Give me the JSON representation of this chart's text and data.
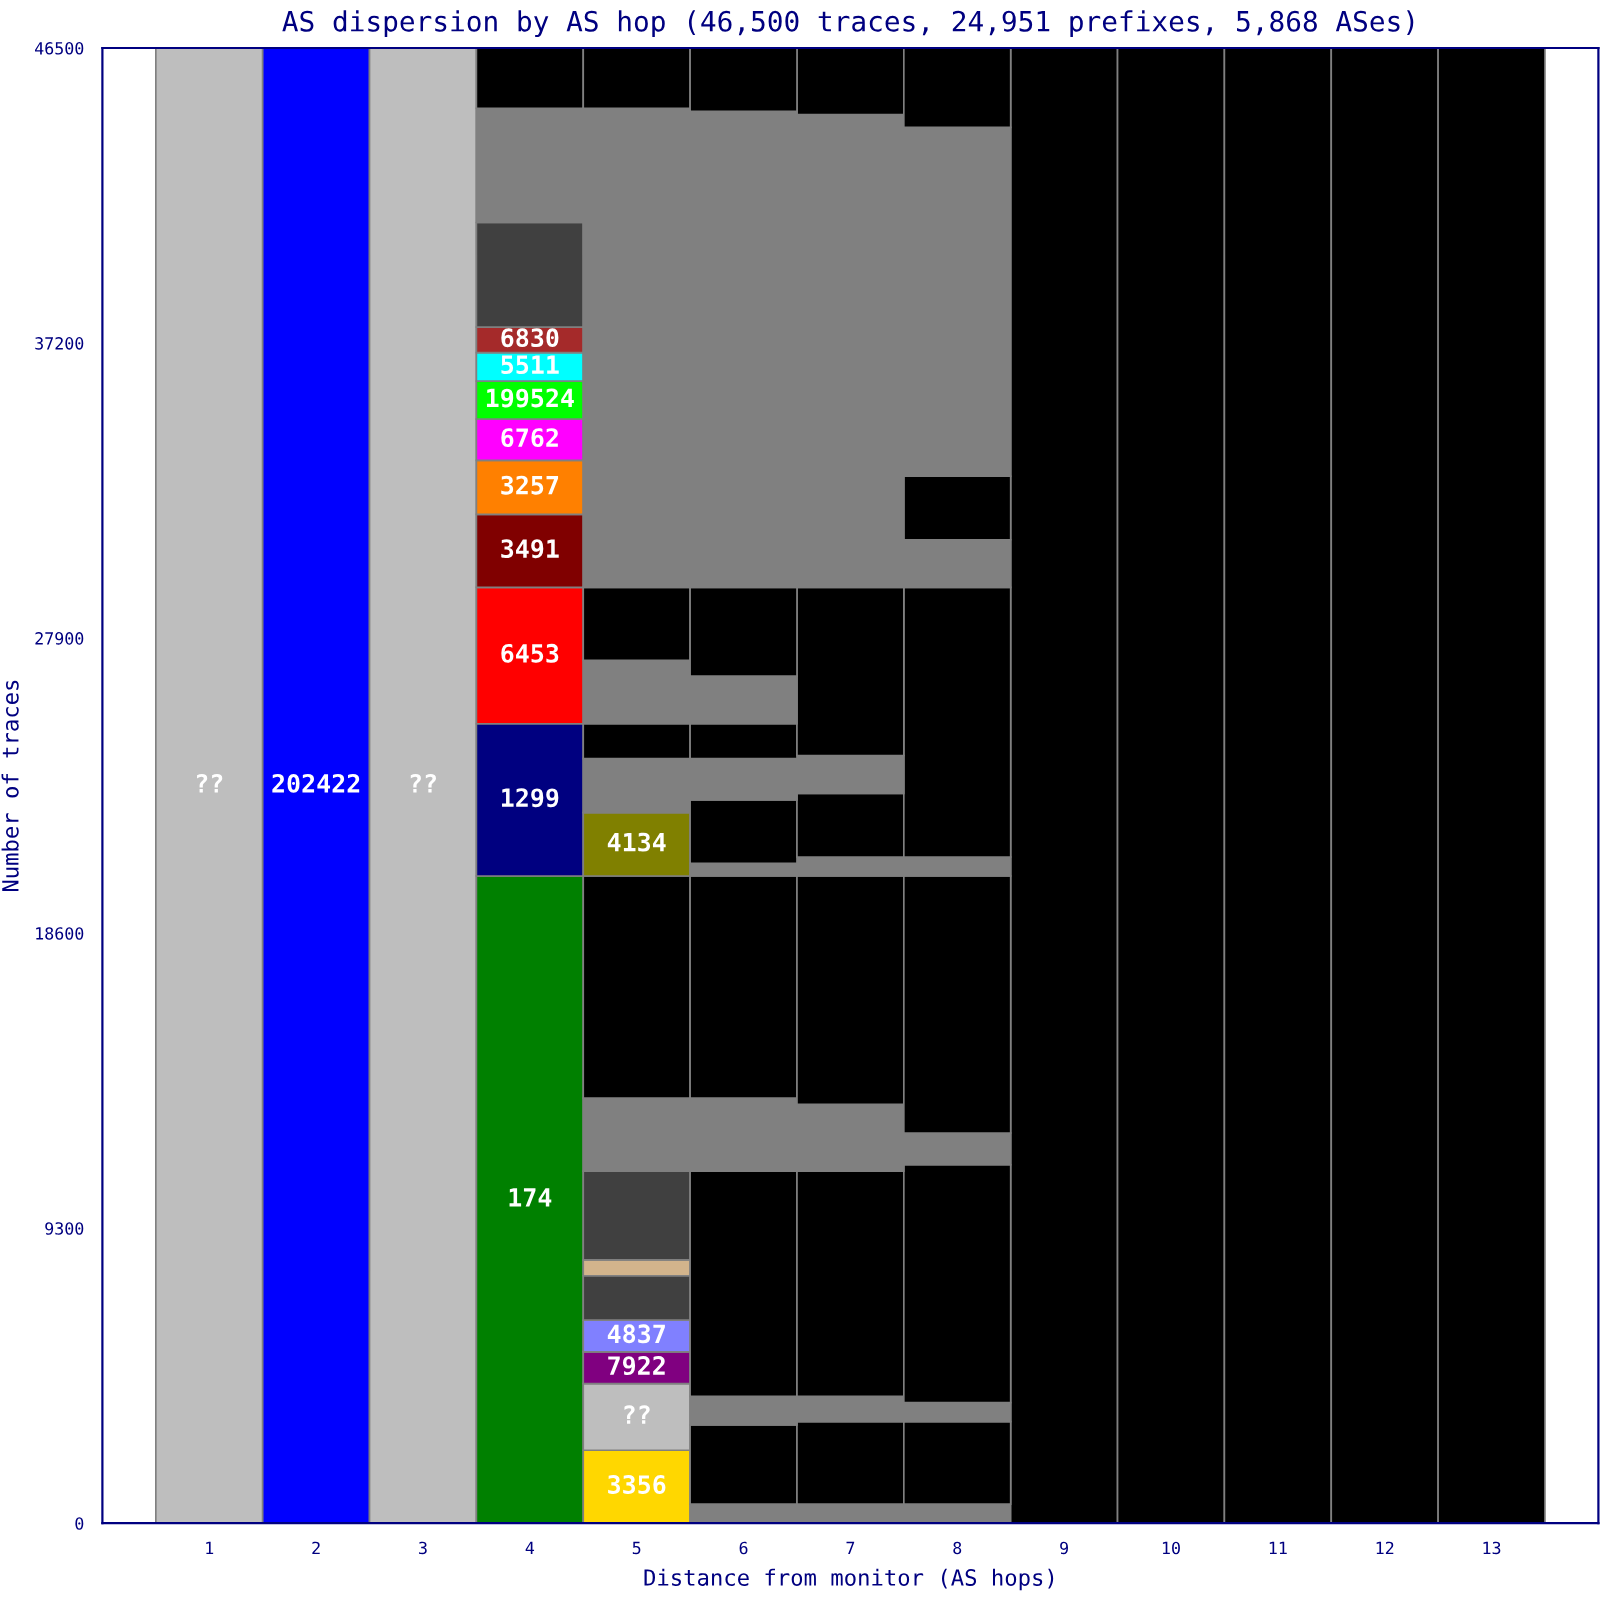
{
  "chart_data": {
    "type": "bar",
    "stacked": true,
    "title": "AS dispersion by AS hop (46,500 traces, 24,951 prefixes, 5,868 ASes)",
    "xlabel": "Distance from monitor (AS hops)",
    "ylabel": "Number of traces",
    "categories": [
      "1",
      "2",
      "3",
      "4",
      "5",
      "6",
      "7",
      "8",
      "9",
      "10",
      "11",
      "12",
      "13"
    ],
    "ylim": [
      0,
      46500
    ],
    "yticks": [
      0,
      9300,
      18600,
      27900,
      37200,
      46500
    ],
    "legend": false,
    "grid": false,
    "series": [
      {
        "name": "??",
        "color": "#bebebe",
        "values": [
          46500,
          null,
          null,
          null,
          null,
          null,
          null,
          null,
          null,
          null,
          null,
          null,
          null
        ]
      },
      {
        "name": "202422",
        "color": "#0000ff",
        "values": [
          null,
          46500,
          null,
          null,
          null,
          null,
          null,
          null,
          null,
          null,
          null,
          null,
          null
        ]
      },
      {
        "name": "??",
        "color": "#bebebe",
        "values": [
          null,
          null,
          46500,
          null,
          null,
          null,
          null,
          null,
          null,
          null,
          null,
          null,
          null
        ]
      },
      {
        "name": "174",
        "color": "#008000",
        "values": [
          null,
          null,
          null,
          20400,
          null,
          null,
          null,
          null,
          null,
          null,
          null,
          null,
          null
        ]
      },
      {
        "name": "1299",
        "color": "#000080",
        "values": [
          null,
          null,
          null,
          4800,
          null,
          null,
          null,
          null,
          null,
          null,
          null,
          null,
          null
        ]
      },
      {
        "name": "6453",
        "color": "#ff0000",
        "values": [
          null,
          null,
          null,
          4300,
          null,
          null,
          null,
          null,
          null,
          null,
          null,
          null,
          null
        ]
      },
      {
        "name": "3491",
        "color": "#800000",
        "values": [
          null,
          null,
          null,
          2300,
          null,
          null,
          null,
          null,
          null,
          null,
          null,
          null,
          null
        ]
      },
      {
        "name": "3257",
        "color": "#ff8000",
        "values": [
          null,
          null,
          null,
          1700,
          null,
          null,
          null,
          null,
          null,
          null,
          null,
          null,
          null
        ]
      },
      {
        "name": "6762",
        "color": "#ff00ff",
        "values": [
          null,
          null,
          null,
          1300,
          null,
          null,
          null,
          null,
          null,
          null,
          null,
          null,
          null
        ]
      },
      {
        "name": "199524",
        "color": "#00ff00",
        "values": [
          null,
          null,
          null,
          1200,
          null,
          null,
          null,
          null,
          null,
          null,
          null,
          null,
          null
        ]
      },
      {
        "name": "5511",
        "color": "#00ffff",
        "values": [
          null,
          null,
          null,
          900,
          null,
          null,
          null,
          null,
          null,
          null,
          null,
          null,
          null
        ]
      },
      {
        "name": "6830",
        "color": "#a52a2a",
        "values": [
          null,
          null,
          null,
          800,
          null,
          null,
          null,
          null,
          null,
          null,
          null,
          null,
          null
        ]
      },
      {
        "color": "#404040",
        "values": [
          null,
          null,
          null,
          3300,
          null,
          null,
          null,
          null,
          null,
          null,
          null,
          null,
          null
        ]
      },
      {
        "color": "#808080",
        "values": [
          null,
          null,
          null,
          3600,
          null,
          null,
          null,
          null,
          null,
          null,
          null,
          null,
          null
        ]
      },
      {
        "color": "#000000",
        "values": [
          null,
          null,
          null,
          1900,
          null,
          null,
          null,
          null,
          null,
          null,
          null,
          null,
          null
        ]
      },
      {
        "name": "3356",
        "color": "#ffd700",
        "values": [
          null,
          null,
          null,
          null,
          2300,
          null,
          null,
          null,
          null,
          null,
          null,
          null,
          null
        ]
      },
      {
        "name": "??",
        "color": "#bebebe",
        "values": [
          null,
          null,
          null,
          null,
          2100,
          null,
          null,
          null,
          null,
          null,
          null,
          null,
          null
        ]
      },
      {
        "name": "7922",
        "color": "#800080",
        "values": [
          null,
          null,
          null,
          null,
          1000,
          null,
          null,
          null,
          null,
          null,
          null,
          null,
          null
        ]
      },
      {
        "name": "4837",
        "color": "#8080ff",
        "values": [
          null,
          null,
          null,
          null,
          1000,
          null,
          null,
          null,
          null,
          null,
          null,
          null,
          null
        ]
      },
      {
        "color": "#404040",
        "values": [
          null,
          null,
          null,
          null,
          1400,
          null,
          null,
          null,
          null,
          null,
          null,
          null,
          null
        ]
      },
      {
        "color": "#d2b48c",
        "values": [
          null,
          null,
          null,
          null,
          500,
          null,
          null,
          null,
          null,
          null,
          null,
          null,
          null
        ]
      },
      {
        "color": "#404040",
        "values": [
          null,
          null,
          null,
          null,
          2800,
          null,
          null,
          null,
          null,
          null,
          null,
          null,
          null
        ]
      },
      {
        "color": "#808080",
        "values": [
          null,
          null,
          null,
          null,
          2300,
          null,
          null,
          null,
          null,
          null,
          null,
          null,
          null
        ]
      },
      {
        "color": "#000000",
        "values": [
          null,
          null,
          null,
          null,
          7000,
          null,
          null,
          null,
          null,
          null,
          null,
          null,
          null
        ]
      },
      {
        "name": "4134",
        "color": "#808000",
        "values": [
          null,
          null,
          null,
          null,
          2000,
          null,
          null,
          null,
          null,
          null,
          null,
          null,
          null
        ]
      },
      {
        "color": "#808080",
        "values": [
          null,
          null,
          null,
          null,
          1700,
          null,
          null,
          null,
          null,
          null,
          null,
          null,
          null
        ]
      },
      {
        "color": "#000000",
        "values": [
          null,
          null,
          null,
          null,
          1100,
          null,
          null,
          null,
          null,
          null,
          null,
          null,
          null
        ]
      },
      {
        "color": "#808080",
        "values": [
          null,
          null,
          null,
          null,
          2000,
          null,
          null,
          null,
          null,
          null,
          null,
          null,
          null
        ]
      },
      {
        "color": "#000000",
        "values": [
          null,
          null,
          null,
          null,
          2300,
          null,
          null,
          null,
          null,
          null,
          null,
          null,
          null
        ]
      },
      {
        "color": "#808080",
        "values": [
          null,
          null,
          null,
          null,
          15100,
          null,
          null,
          null,
          null,
          null,
          null,
          null,
          null
        ]
      },
      {
        "color": "#000000",
        "values": [
          null,
          null,
          null,
          null,
          1900,
          null,
          null,
          null,
          null,
          null,
          null,
          null,
          null
        ]
      },
      {
        "colors": [
          null,
          null,
          null,
          null,
          null,
          "#808080",
          "#808080",
          "#808080",
          "#000000",
          "#000000",
          "#000000",
          "#000000",
          "#000000"
        ],
        "values": [
          null,
          null,
          null,
          null,
          null,
          600,
          600,
          600,
          46500,
          46500,
          46500,
          46500,
          46500
        ]
      },
      {
        "color": "#000000",
        "values": [
          null,
          null,
          null,
          null,
          null,
          2500,
          2600,
          2600,
          null,
          null,
          null,
          null,
          null
        ]
      },
      {
        "color": "#808080",
        "values": [
          null,
          null,
          null,
          null,
          null,
          900,
          800,
          600,
          null,
          null,
          null,
          null,
          null
        ]
      },
      {
        "color": "#000000",
        "values": [
          null,
          null,
          null,
          null,
          null,
          7100,
          7100,
          7500,
          null,
          null,
          null,
          null,
          null
        ]
      },
      {
        "color": "#808080",
        "values": [
          null,
          null,
          null,
          null,
          null,
          2300,
          2100,
          1000,
          null,
          null,
          null,
          null,
          null
        ]
      },
      {
        "color": "#000000",
        "values": [
          null,
          null,
          null,
          null,
          null,
          7000,
          7200,
          8100,
          null,
          null,
          null,
          null,
          null
        ]
      },
      {
        "color": "#808080",
        "values": [
          null,
          null,
          null,
          null,
          null,
          400,
          600,
          600,
          null,
          null,
          null,
          null,
          null
        ]
      },
      {
        "color": "#000000",
        "values": [
          null,
          null,
          null,
          null,
          null,
          2000,
          2000,
          8500,
          null,
          null,
          null,
          null,
          null
        ]
      },
      {
        "color": "#808080",
        "values": [
          null,
          null,
          null,
          null,
          null,
          1300,
          1200,
          1500,
          null,
          null,
          null,
          null,
          null
        ]
      },
      {
        "color": "#000000",
        "values": [
          null,
          null,
          null,
          null,
          null,
          1100,
          5300,
          2000,
          null,
          null,
          null,
          null,
          null
        ]
      },
      {
        "color": "#808080",
        "values": [
          null,
          null,
          null,
          null,
          null,
          1500,
          14900,
          11000,
          null,
          null,
          null,
          null,
          null
        ]
      },
      {
        "color": "#000000",
        "values": [
          null,
          null,
          null,
          null,
          null,
          2800,
          2100,
          2500,
          null,
          null,
          null,
          null,
          null
        ]
      },
      {
        "color": "#808080",
        "values": [
          null,
          null,
          null,
          null,
          null,
          15000,
          null,
          null,
          null,
          null,
          null,
          null,
          null
        ]
      },
      {
        "color": "#000000",
        "values": [
          null,
          null,
          null,
          null,
          null,
          2000,
          null,
          null,
          null,
          null,
          null,
          null,
          null
        ]
      }
    ]
  }
}
